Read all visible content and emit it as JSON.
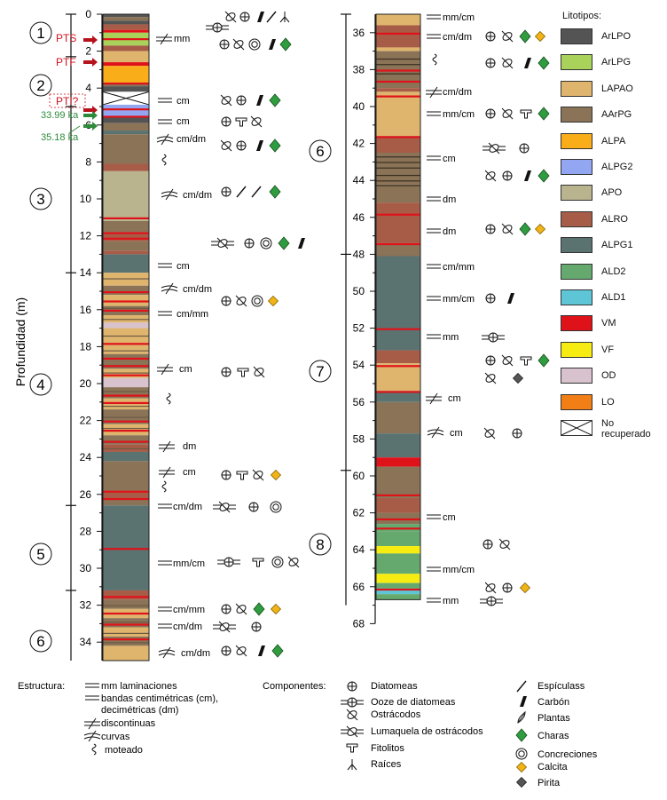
{
  "axis": {
    "title": "Profundidad (m)",
    "ticks_left": [
      "0",
      "2",
      "4",
      "6",
      "8",
      "10",
      "12",
      "14",
      "16",
      "18",
      "20",
      "22",
      "24",
      "26",
      "28",
      "30",
      "32",
      "34"
    ],
    "ticks_right": [
      "36",
      "38",
      "40",
      "42",
      "44",
      "46",
      "48",
      "50",
      "52",
      "54",
      "56",
      "58",
      "60",
      "62",
      "64",
      "66",
      "68"
    ]
  },
  "units": [
    "1",
    "2",
    "3",
    "4",
    "5",
    "6",
    "6",
    "7",
    "8"
  ],
  "events": [
    {
      "label": "PTS",
      "color": "#d0101e"
    },
    {
      "label": "PTF",
      "color": "#d0101e"
    },
    {
      "label": "PTI?",
      "color": "#d0101e"
    },
    {
      "label": "33.99 ka",
      "color": "#2e8b3a"
    },
    {
      "label": "35.18 ka",
      "color": "#2e8b3a"
    }
  ],
  "structure_notes_left": [
    "mm",
    "cm",
    "cm",
    "cm/dm",
    "cm/dm",
    "cm",
    "cm/dm",
    "cm/mm",
    "cm",
    "dm",
    "cm",
    "cm/dm",
    "mm/cm",
    "cm/mm",
    "cm/dm",
    "cm/dm"
  ],
  "structure_notes_right": [
    "mm/cm",
    "cm/dm",
    "cm/dm",
    "mm/cm",
    "cm",
    "dm",
    "dm",
    "cm/mm",
    "mm/cm",
    "mm",
    "cm",
    "cm",
    "cm",
    "mm/cm",
    "mm"
  ],
  "lithotypes_legend": {
    "title": "Litotipos:",
    "items": [
      {
        "code": "ArLPO",
        "color": "#545454"
      },
      {
        "code": "ArLPG",
        "color": "#a9d25a"
      },
      {
        "code": "LAPAO",
        "color": "#dfb56e"
      },
      {
        "code": "AArPG",
        "color": "#8a7356"
      },
      {
        "code": "ALPA",
        "color": "#f9ae19"
      },
      {
        "code": "ALPG2",
        "color": "#93a6f2"
      },
      {
        "code": "APO",
        "color": "#b9b48e"
      },
      {
        "code": "ALRO",
        "color": "#a75c48"
      },
      {
        "code": "ALPG1",
        "color": "#5a7270"
      },
      {
        "code": "ALD2",
        "color": "#66a96e"
      },
      {
        "code": "ALD1",
        "color": "#5dc5d6"
      },
      {
        "code": "VM",
        "color": "#e01219"
      },
      {
        "code": "VF",
        "color": "#f7ec12"
      },
      {
        "code": "OD",
        "color": "#d8c2cd"
      },
      {
        "code": "LO",
        "color": "#f27f16"
      },
      {
        "code": "No recuperado",
        "color": "#ffffff"
      }
    ]
  },
  "structure_legend": {
    "title": "Estructura:",
    "items": [
      "mm laminaciones",
      "bandas centimétricas (cm),",
      "decimétricas (dm)",
      "discontinuas",
      "curvas",
      "moteado"
    ]
  },
  "components_legend": {
    "title": "Componentes:",
    "items": [
      "Diatomeas",
      "Ooze de diatomeas",
      "Ostrácodos",
      "Lumaquela de ostrácodos",
      "Fitolitos",
      "Raíces",
      "Espículass",
      "Carbón",
      "Plantas",
      "Charas",
      "Concreciones",
      "Calcita",
      "Pirita"
    ]
  }
}
